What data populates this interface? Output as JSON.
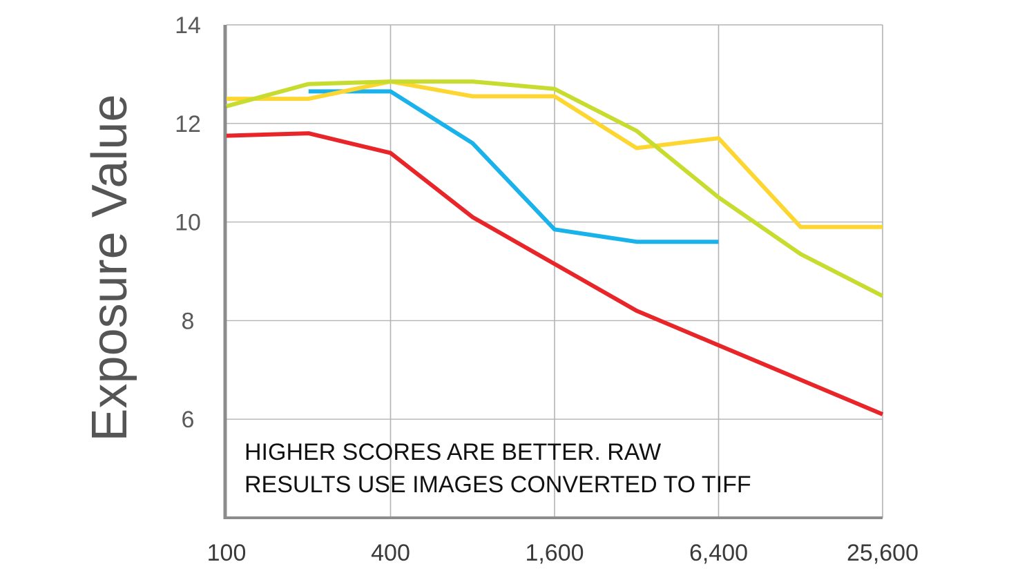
{
  "chart_data": {
    "type": "line",
    "ylabel": "Exposure Value",
    "xlabel": "",
    "title": "",
    "x_scale": "log2",
    "x": [
      100,
      200,
      400,
      800,
      1600,
      3200,
      6400,
      12800,
      25600
    ],
    "x_tick_values": [
      100,
      400,
      1600,
      6400,
      25600
    ],
    "x_tick_labels": [
      "100",
      "400",
      "1,600",
      "6,400",
      "25,600"
    ],
    "ylim": [
      4,
      14
    ],
    "y_tick_values": [
      6,
      8,
      10,
      12,
      14
    ],
    "y_tick_labels": [
      "6",
      "8",
      "10",
      "12",
      "14"
    ],
    "grid": true,
    "series": [
      {
        "color": "#e8262a",
        "values": [
          11.75,
          11.8,
          11.4,
          10.1,
          9.15,
          8.2,
          7.5,
          6.8,
          6.1
        ]
      },
      {
        "color": "#1ab2ea",
        "values": [
          null,
          12.65,
          12.65,
          11.6,
          9.85,
          9.6,
          9.6,
          null,
          null
        ]
      },
      {
        "color": "#fdd631",
        "values": [
          12.5,
          12.5,
          12.85,
          12.55,
          12.55,
          11.5,
          11.7,
          9.9,
          9.9
        ]
      },
      {
        "color": "#c8dc30",
        "values": [
          12.35,
          12.8,
          12.85,
          12.85,
          12.7,
          11.85,
          10.5,
          9.35,
          8.5
        ]
      }
    ],
    "annotation": [
      "HIGHER SCORES ARE BETTER. RAW",
      "RESULTS USE IMAGES CONVERTED TO TIFF"
    ]
  }
}
